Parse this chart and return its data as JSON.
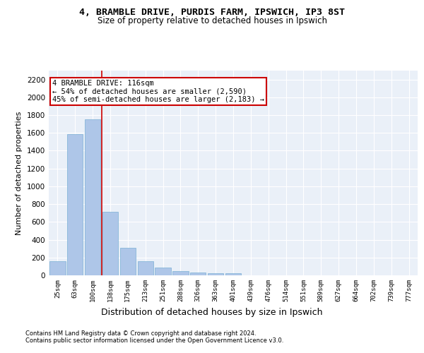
{
  "title1": "4, BRAMBLE DRIVE, PURDIS FARM, IPSWICH, IP3 8ST",
  "title2": "Size of property relative to detached houses in Ipswich",
  "xlabel": "Distribution of detached houses by size in Ipswich",
  "ylabel": "Number of detached properties",
  "categories": [
    "25sqm",
    "63sqm",
    "100sqm",
    "138sqm",
    "175sqm",
    "213sqm",
    "251sqm",
    "288sqm",
    "326sqm",
    "363sqm",
    "401sqm",
    "439sqm",
    "476sqm",
    "514sqm",
    "551sqm",
    "589sqm",
    "627sqm",
    "664sqm",
    "702sqm",
    "739sqm",
    "777sqm"
  ],
  "values": [
    160,
    1585,
    1755,
    710,
    310,
    160,
    85,
    50,
    30,
    20,
    20,
    0,
    0,
    0,
    0,
    0,
    0,
    0,
    0,
    0,
    0
  ],
  "bar_color": "#aec6e8",
  "bar_edgecolor": "#7aafd4",
  "bg_color": "#eaf0f8",
  "grid_color": "#ffffff",
  "annotation_box_text": "4 BRAMBLE DRIVE: 116sqm\n← 54% of detached houses are smaller (2,590)\n45% of semi-detached houses are larger (2,183) →",
  "annotation_box_color": "#ffffff",
  "annotation_box_edgecolor": "#cc0000",
  "red_line_color": "#cc0000",
  "footer1": "Contains HM Land Registry data © Crown copyright and database right 2024.",
  "footer2": "Contains public sector information licensed under the Open Government Licence v3.0.",
  "ylim": [
    0,
    2300
  ],
  "yticks": [
    0,
    200,
    400,
    600,
    800,
    1000,
    1200,
    1400,
    1600,
    1800,
    2000,
    2200
  ]
}
